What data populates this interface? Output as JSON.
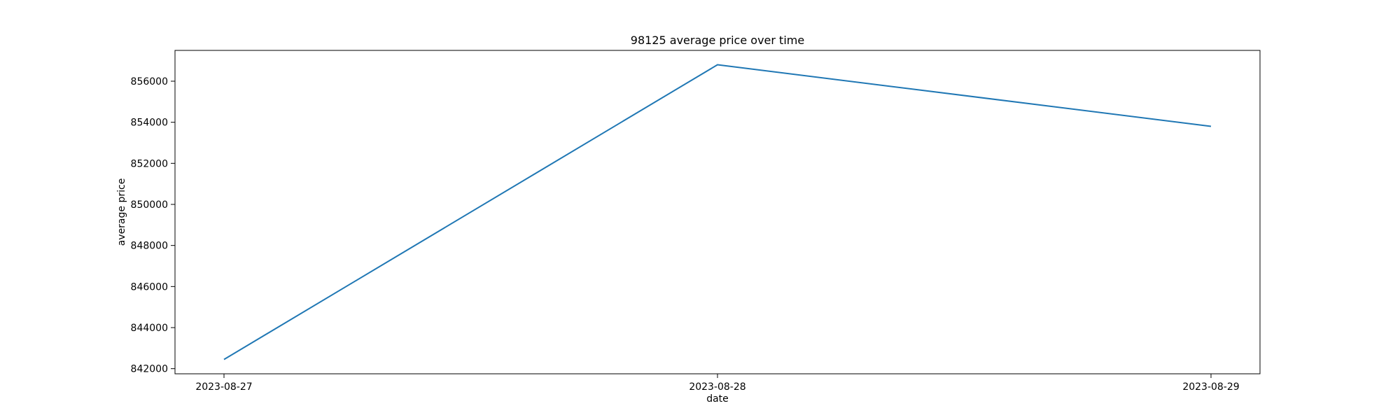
{
  "chart_data": {
    "type": "line",
    "title": "98125 average price over time",
    "xlabel": "date",
    "ylabel": "average price",
    "categories": [
      "2023-08-27",
      "2023-08-28",
      "2023-08-29"
    ],
    "series": [
      {
        "values": [
          842450,
          856800,
          853800
        ],
        "color": "#1f77b4"
      }
    ],
    "ylim": [
      841750,
      857500
    ],
    "yticks": [
      842000,
      844000,
      846000,
      848000,
      850000,
      852000,
      854000,
      856000
    ],
    "grid": false,
    "legend": "none"
  }
}
